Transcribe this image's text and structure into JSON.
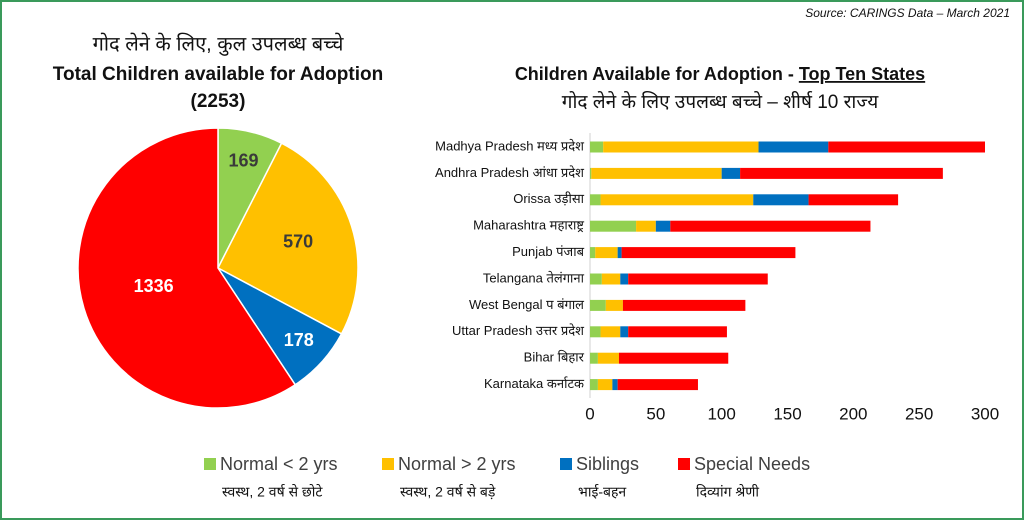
{
  "source": "Source: CARINGS Data –  March 2021",
  "chart_data": [
    {
      "type": "pie",
      "title_hindi": "गोद लेने के लिए, कुल उपलब्ध बच्चे",
      "title": "Total Children available for Adoption",
      "subtitle": "(2253)",
      "values": [
        169,
        570,
        178,
        1336
      ],
      "colors": [
        "#92d050",
        "#ffc000",
        "#0070c0",
        "#ff0000"
      ],
      "label_colors": [
        "#3a3a3a",
        "#3a3a3a",
        "#ffffff",
        "#ffffff"
      ]
    },
    {
      "type": "bar",
      "orientation": "horizontal",
      "stacked": true,
      "title": "Children Available for Adoption - ",
      "title_emphasis": "Top Ten States",
      "title_hindi": "गोद लेने के लिए उपलब्ध बच्चे – शीर्ष 10 राज्य",
      "categories": [
        "Madhya Pradesh मध्य प्रदेश",
        "Andhra Pradesh आंधा प्रदेश",
        "Orissa उड़ीसा",
        "Maharashtra महाराष्ट्र",
        "Punjab पंजाब",
        "Telangana तेलंगाना",
        "West Bengal प बंगाल",
        "Uttar Pradesh उत्तर प्रदेश",
        "Bihar बिहार",
        "Karnataka कर्नाटक"
      ],
      "series": [
        {
          "name": "Normal < 2 yrs",
          "subtitle": "स्वस्थ, 2 वर्ष से छोटे",
          "color": "#92d050",
          "values": [
            10,
            1,
            8,
            35,
            4,
            9,
            12,
            8,
            6,
            6
          ]
        },
        {
          "name": "Normal > 2 yrs",
          "subtitle": "स्वस्थ, 2 वर्ष से बड़े",
          "color": "#ffc000",
          "values": [
            118,
            99,
            116,
            15,
            17,
            14,
            13,
            15,
            16,
            11
          ]
        },
        {
          "name": "Siblings",
          "subtitle": "भाई-बहन",
          "color": "#0070c0",
          "values": [
            53,
            14,
            42,
            11,
            3,
            6,
            0,
            6,
            0,
            4
          ]
        },
        {
          "name": "Special Needs",
          "subtitle": "दिव्यांग श्रेणी",
          "color": "#ff0000",
          "values": [
            119,
            154,
            68,
            152,
            132,
            106,
            93,
            75,
            83,
            61
          ]
        }
      ],
      "xlim": [
        0,
        300
      ],
      "xticks": [
        0,
        50,
        100,
        150,
        200,
        250,
        300
      ]
    }
  ]
}
